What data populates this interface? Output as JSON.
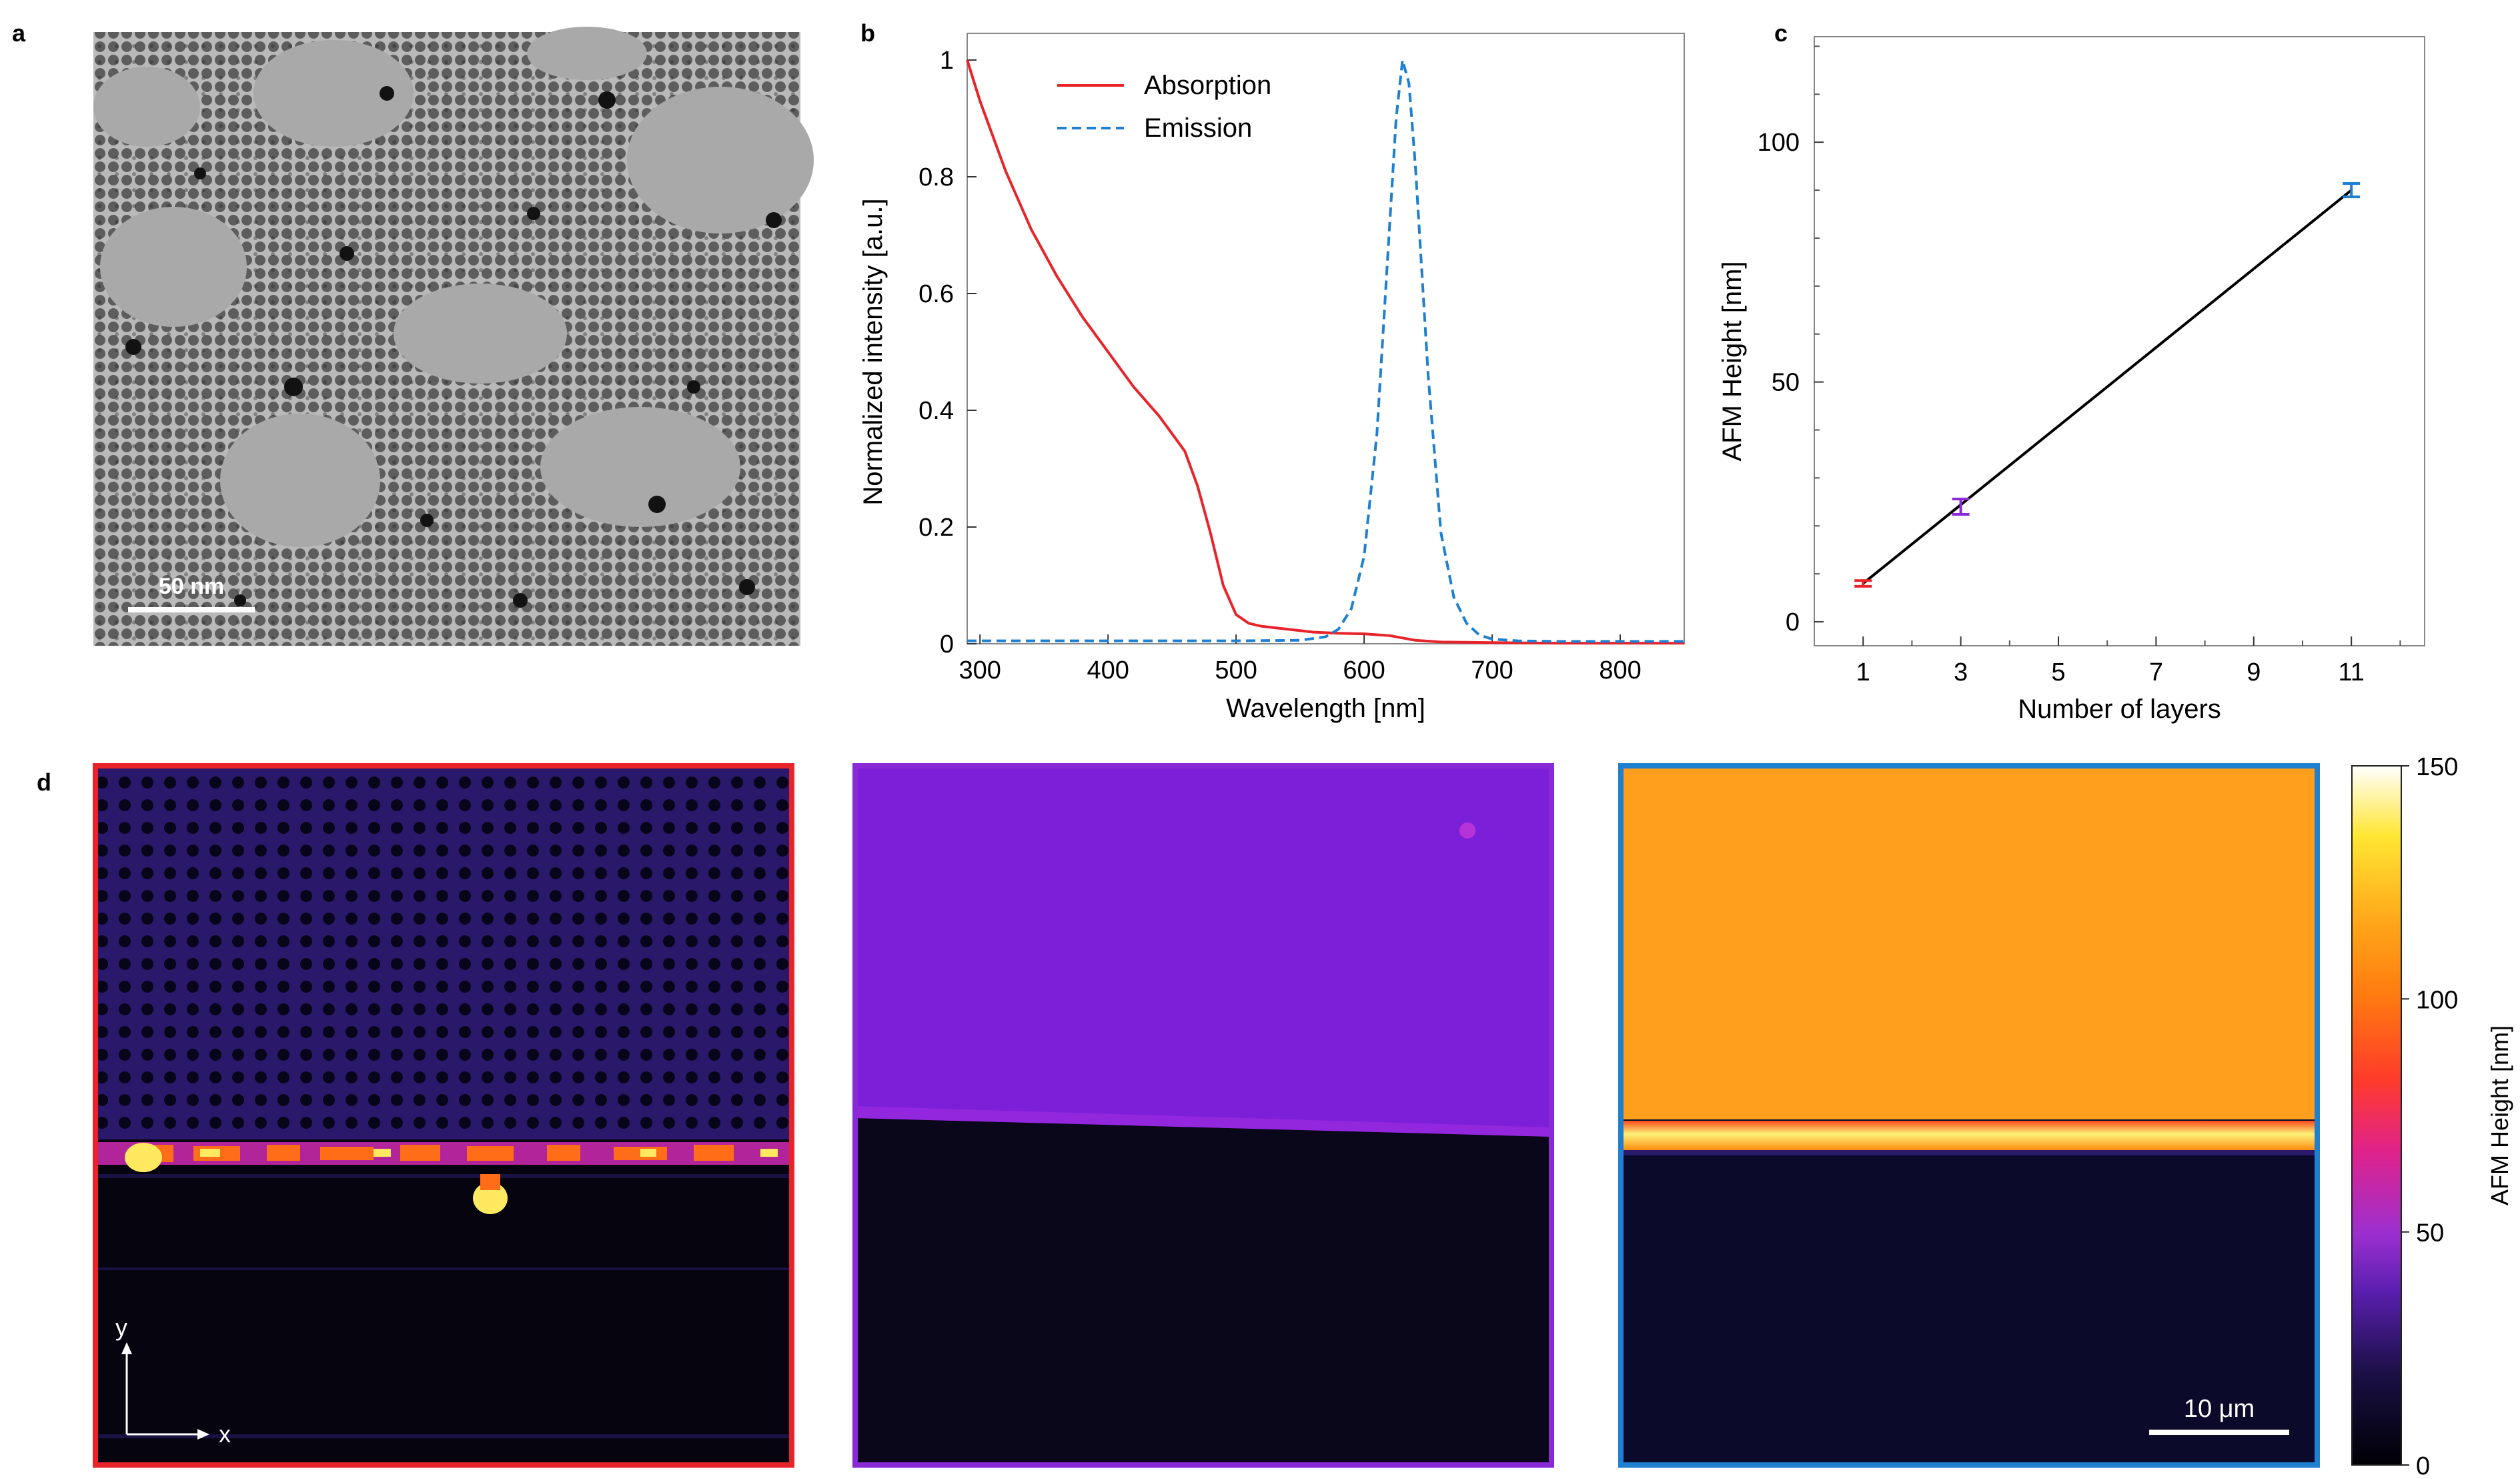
{
  "panels": {
    "a": {
      "letter": "a",
      "image": "TEM micrograph of nanocrystals",
      "scalebar_label": "50 nm"
    },
    "b": {
      "letter": "b"
    },
    "c": {
      "letter": "c"
    },
    "d": {
      "letter": "d",
      "axis_y": "y",
      "axis_x": "x",
      "scalebar_label": "10 μm",
      "frame_colors": [
        "#e8242b",
        "#8a2ad6",
        "#1f7fd0"
      ],
      "colorbar": {
        "label": "AFM Height [nm]",
        "ticks": [
          0,
          50,
          100,
          150
        ]
      }
    }
  },
  "chart_data": [
    {
      "id": "b",
      "type": "line",
      "title": "",
      "xlabel": "Wavelength [nm]",
      "ylabel": "Normalized intensity [a.u.]",
      "xlim": [
        290,
        850
      ],
      "ylim": [
        0,
        1.0
      ],
      "xticks": [
        300,
        400,
        500,
        600,
        700,
        800
      ],
      "yticks": [
        0,
        0.2,
        0.4,
        0.6,
        0.8,
        1
      ],
      "legend": "top-left",
      "series": [
        {
          "name": "Absorption",
          "color": "#e8242b",
          "style": "solid",
          "x": [
            290,
            300,
            320,
            340,
            360,
            380,
            400,
            420,
            440,
            460,
            470,
            480,
            490,
            500,
            510,
            520,
            540,
            560,
            580,
            600,
            620,
            640,
            660,
            700,
            750,
            800,
            850
          ],
          "y": [
            1.0,
            0.93,
            0.81,
            0.71,
            0.63,
            0.56,
            0.5,
            0.44,
            0.39,
            0.33,
            0.27,
            0.19,
            0.1,
            0.05,
            0.035,
            0.03,
            0.025,
            0.02,
            0.018,
            0.017,
            0.014,
            0.006,
            0.003,
            0.002,
            0.001,
            0.001,
            0.001
          ]
        },
        {
          "name": "Emission",
          "color": "#1f7fd0",
          "style": "dashed",
          "x": [
            290,
            500,
            550,
            570,
            580,
            590,
            600,
            610,
            620,
            625,
            630,
            635,
            640,
            650,
            660,
            670,
            680,
            690,
            700,
            720,
            750,
            850
          ],
          "y": [
            0.005,
            0.005,
            0.006,
            0.012,
            0.025,
            0.06,
            0.15,
            0.36,
            0.72,
            0.9,
            1.0,
            0.96,
            0.82,
            0.46,
            0.19,
            0.08,
            0.035,
            0.015,
            0.008,
            0.005,
            0.004,
            0.004
          ]
        }
      ]
    },
    {
      "id": "c",
      "type": "line",
      "title": "",
      "xlabel": "Number of layers",
      "ylabel": "AFM Height [nm]",
      "xlim": [
        0,
        12.5
      ],
      "ylim": [
        -5,
        122
      ],
      "xticks": [
        1,
        3,
        5,
        7,
        9,
        11
      ],
      "yticks": [
        0,
        50,
        100
      ],
      "series": [
        {
          "name": "fit",
          "color": "#000000",
          "x": [
            1,
            11
          ],
          "y": [
            8,
            90
          ]
        }
      ],
      "points": [
        {
          "x": 1,
          "y": 8,
          "err": 0.6,
          "color": "#e8242b"
        },
        {
          "x": 3,
          "y": 24,
          "err": 1.6,
          "color": "#8a2ad6"
        },
        {
          "x": 11,
          "y": 90,
          "err": 1.4,
          "color": "#1f7fd0"
        }
      ]
    }
  ]
}
